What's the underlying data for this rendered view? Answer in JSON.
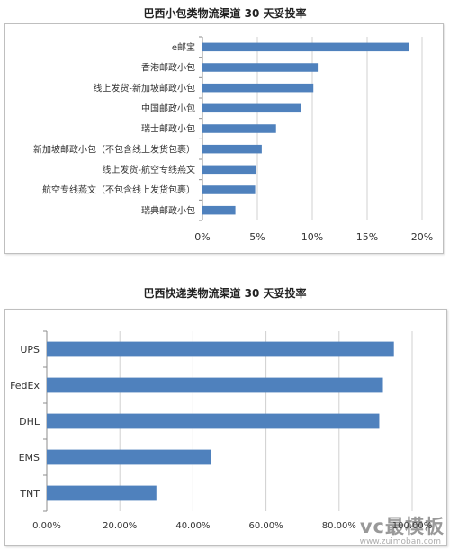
{
  "colors": {
    "bar": "#4f81bd",
    "grid": "#d0d0d0",
    "axis": "#8c8c8c"
  },
  "watermark": {
    "main": "vc最模板",
    "sub": "www.zuimoban.com"
  },
  "chart_data": [
    {
      "type": "bar",
      "orientation": "horizontal",
      "title": "巴西小包类物流渠道 30 天妥投率",
      "categories": [
        "e邮宝",
        "香港邮政小包",
        "线上发货-新加坡邮政小包",
        "中国邮政小包",
        "瑞士邮政小包",
        "新加坡邮政小包（不包含线上发货包裹）",
        "线上发货-航空专线燕文",
        "航空专线燕文（不包含线上发货包裹）",
        "瑞典邮政小包"
      ],
      "values": [
        18.8,
        10.5,
        10.1,
        9.0,
        6.7,
        5.4,
        4.9,
        4.8,
        3.0
      ],
      "xlim": [
        0,
        20
      ],
      "xticks": [
        "0%",
        "5%",
        "10%",
        "15%",
        "20%"
      ],
      "grid": true
    },
    {
      "type": "bar",
      "orientation": "horizontal",
      "title": "巴西快递类物流渠道 30 天妥投率",
      "categories": [
        "UPS",
        "FedEx",
        "DHL",
        "EMS",
        "TNT"
      ],
      "values": [
        95,
        92,
        91,
        45,
        30
      ],
      "xlim": [
        0,
        100
      ],
      "xticks": [
        "0.00%",
        "20.00%",
        "40.00%",
        "60.00%",
        "80.00%",
        "100.00%"
      ],
      "grid": true
    }
  ]
}
